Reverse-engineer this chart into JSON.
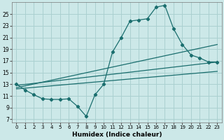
{
  "xlabel": "Humidex (Indice chaleur)",
  "ylabel": "",
  "bg_color": "#cce8e8",
  "line_color": "#1a6e6e",
  "grid_color": "#aad0d0",
  "xlim": [
    -0.5,
    23.5
  ],
  "ylim": [
    6.5,
    27.0
  ],
  "xticks": [
    0,
    1,
    2,
    3,
    4,
    5,
    6,
    7,
    8,
    9,
    10,
    11,
    12,
    13,
    14,
    15,
    16,
    17,
    18,
    19,
    20,
    21,
    22,
    23
  ],
  "yticks": [
    7,
    9,
    11,
    13,
    15,
    17,
    19,
    21,
    23,
    25
  ],
  "curve_x": [
    0,
    1,
    2,
    3,
    4,
    5,
    6,
    7,
    8,
    9,
    10,
    11,
    12,
    13,
    14,
    15,
    16,
    17,
    18,
    19,
    20,
    21,
    22,
    23
  ],
  "curve_y": [
    13.0,
    12.0,
    11.2,
    10.5,
    10.4,
    10.4,
    10.5,
    9.2,
    7.5,
    11.2,
    13.0,
    18.5,
    21.0,
    23.8,
    24.0,
    24.2,
    26.2,
    26.5,
    22.5,
    19.8,
    18.0,
    17.5,
    16.8,
    16.8
  ],
  "line1_x": [
    0,
    23
  ],
  "line1_y": [
    12.8,
    16.8
  ],
  "line2_x": [
    0,
    23
  ],
  "line2_y": [
    12.4,
    19.8
  ],
  "line3_x": [
    0,
    23
  ],
  "line3_y": [
    12.2,
    15.2
  ]
}
